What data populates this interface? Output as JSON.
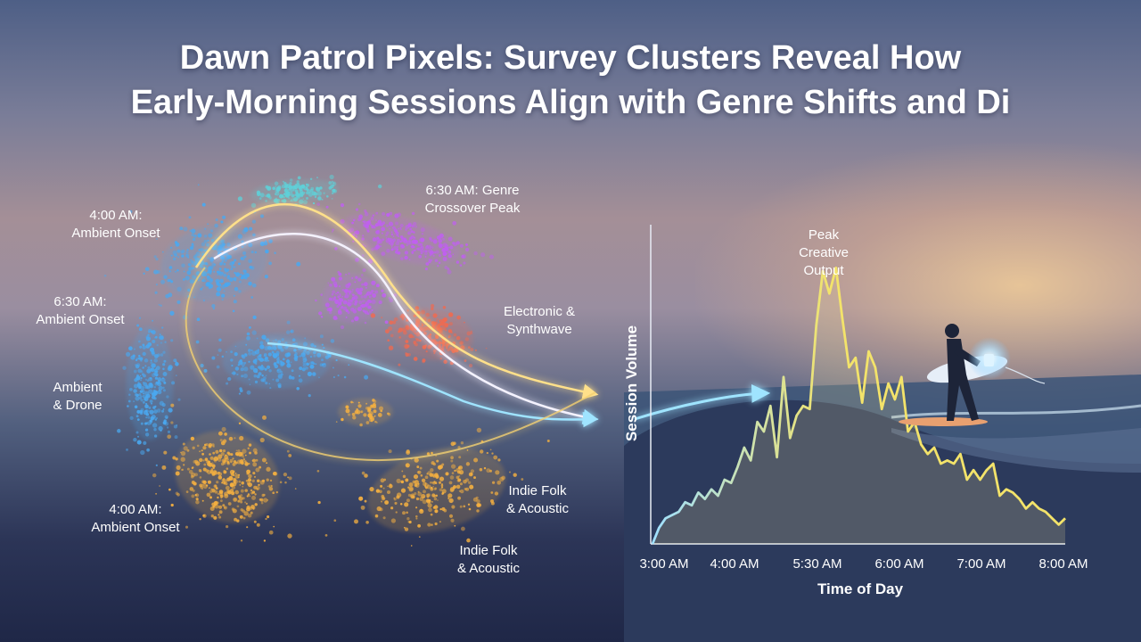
{
  "title": {
    "line1": "Dawn Patrol Pixels: Survey Clusters Reveal How",
    "line2": "Early-Morning Sessions Align with Genre Shifts and Di"
  },
  "colors": {
    "ambient": "#4aa8f0",
    "teal": "#5fd0d8",
    "crossover": "#c060f0",
    "electronic": "#f06a50",
    "folk": "#f5b040",
    "line": "#f3e36a"
  },
  "cluster_labels": [
    {
      "id": "ambient-onset-1",
      "lines": [
        "4:00 AM:",
        "Ambient Onset"
      ]
    },
    {
      "id": "genre-crossover",
      "lines": [
        "6:30 AM: Genre",
        "Crossover Peak"
      ]
    },
    {
      "id": "ambient-onset-2",
      "lines": [
        "6:30 AM:",
        "Ambient Onset"
      ]
    },
    {
      "id": "electronic",
      "lines": [
        "Electronic &",
        "Synthwave"
      ]
    },
    {
      "id": "ambient-drone",
      "lines": [
        "Ambient",
        "& Drone"
      ]
    },
    {
      "id": "folk-1",
      "lines": [
        "Indie Folk",
        "& Acoustic"
      ]
    },
    {
      "id": "ambient-onset-3",
      "lines": [
        "4:00 AM:",
        "Ambient Onset"
      ]
    },
    {
      "id": "folk-2",
      "lines": [
        "Indie Folk",
        "& Acoustic"
      ]
    }
  ],
  "chart_data": {
    "type": "line",
    "title": "",
    "xlabel": "Time of Day",
    "ylabel": "Session Volume",
    "x_ticks": [
      "3:00 AM",
      "4:00 AM",
      "5:30 AM",
      "6:00 AM",
      "7:00 AM",
      "8:00 AM"
    ],
    "annotation": {
      "lines": [
        "Peak",
        "Creative",
        "Output"
      ],
      "at_index": 25
    },
    "series": [
      {
        "values": [
          0,
          5,
          8,
          9,
          10,
          13,
          12,
          16,
          14,
          17,
          15,
          20,
          19,
          24,
          30,
          26,
          38,
          35,
          43,
          27,
          52,
          33,
          40,
          43,
          42,
          68,
          85,
          78,
          86,
          70,
          55,
          58,
          44,
          60,
          55,
          42,
          50,
          45,
          52,
          35,
          38,
          31,
          28,
          30,
          25,
          26,
          25,
          28,
          20,
          23,
          20,
          23,
          25,
          15,
          17,
          16,
          14,
          11,
          13,
          11,
          10,
          8,
          6,
          8
        ],
        "xlim": [
          0,
          63
        ],
        "ylim": [
          0,
          100
        ]
      }
    ]
  }
}
